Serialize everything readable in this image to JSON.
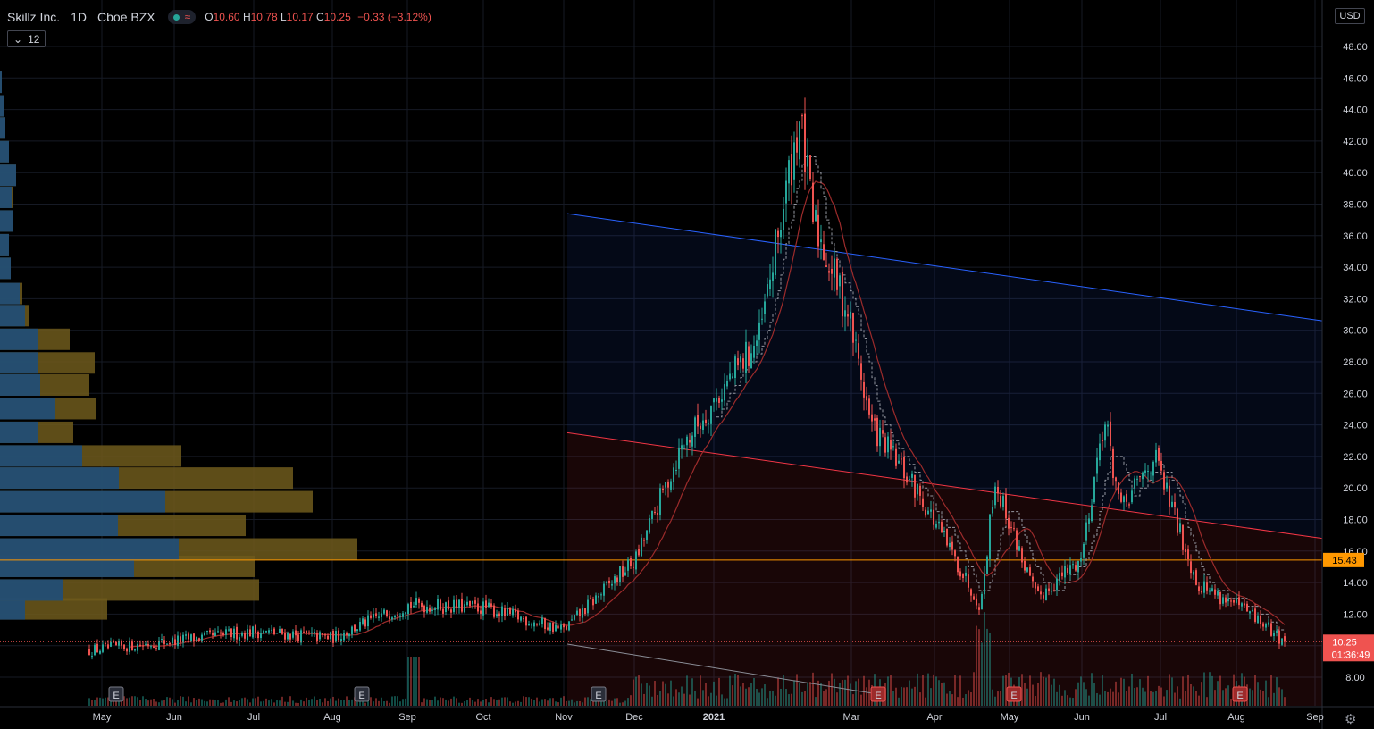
{
  "header": {
    "symbol_name": "Skillz Inc.",
    "interval": "1D",
    "exchange": "Cboe BZX",
    "open_label": "O",
    "open": "10.60",
    "high_label": "H",
    "high": "10.78",
    "low_label": "L",
    "low": "10.17",
    "close_label": "C",
    "close": "10.25",
    "change": "−0.33 (−3.12%)"
  },
  "indicator": {
    "chevron": "⌄",
    "value": "12"
  },
  "currency": "USD",
  "colors": {
    "up": "#26a69a",
    "down": "#ef5350",
    "trend_upper": "#2962ff",
    "trend_lower": "#f23645",
    "support_line": "#ff9800",
    "ma_line": "#9c2b2b",
    "vp_up": "#1f4e79",
    "vp_down": "#6f5a1c"
  },
  "chart_data": {
    "type": "candlestick",
    "symbol": "Skillz Inc.",
    "interval": "1D",
    "exchange": "Cboe BZX",
    "yaxis_ticks": [
      "8.00",
      "10.00",
      "12.00",
      "14.00",
      "16.00",
      "18.00",
      "20.00",
      "22.00",
      "24.00",
      "26.00",
      "28.00",
      "30.00",
      "32.00",
      "34.00",
      "36.00",
      "38.00",
      "40.00",
      "42.00",
      "44.00",
      "46.00",
      "48.00"
    ],
    "ylim": [
      6.8,
      50
    ],
    "xaxis_ticks": [
      "May",
      "Jun",
      "Jul",
      "Aug",
      "Sep",
      "Oct",
      "Nov",
      "Dec",
      "2021",
      "Mar",
      "Apr",
      "May",
      "Jun",
      "Jul",
      "Aug",
      "Sep"
    ],
    "price_labels": [
      {
        "value": 15.43,
        "text": "15.43",
        "color": "#ff9800"
      },
      {
        "value": 10.25,
        "text": "10.25",
        "color": "#ef5350"
      }
    ],
    "countdown": "01:36:49",
    "last_ohlc": {
      "open": 10.6,
      "high": 10.78,
      "low": 10.17,
      "close": 10.25,
      "change": -0.33,
      "change_pct": -3.12
    },
    "earnings_markers": [
      {
        "month": "May 2020",
        "label": "E"
      },
      {
        "month": "Aug 2020",
        "label": "E"
      },
      {
        "month": "Nov 2020",
        "label": "E"
      },
      {
        "month": "Mar 2021",
        "label": "E"
      },
      {
        "month": "May 2021",
        "label": "E"
      },
      {
        "month": "Aug 2021",
        "label": "E"
      }
    ],
    "price_path": [
      [
        "May 2020",
        9.7
      ],
      [
        "Jun 2020",
        10.3
      ],
      [
        "Jul 2020",
        10.9
      ],
      [
        "Aug 2020",
        10.5
      ],
      [
        "Sep 2020",
        12.6
      ],
      [
        "Oct 2020",
        12.4
      ],
      [
        "Nov 2020",
        11.0
      ],
      [
        "Dec 2020",
        15.5
      ],
      [
        "Dec 2020",
        22.5
      ],
      [
        "Jan 2021",
        29.5
      ],
      [
        "Feb 2021",
        43.5
      ],
      [
        "Feb 2021",
        37.0
      ],
      [
        "Mar 2021",
        31.0
      ],
      [
        "Mar 2021",
        24.0
      ],
      [
        "Apr 2021",
        19.5
      ],
      [
        "Apr 2021",
        12.5
      ],
      [
        "May 2021",
        20.5
      ],
      [
        "May 2021",
        13.0
      ],
      [
        "Jun 2021",
        15.5
      ],
      [
        "Jun 2021",
        24.5
      ],
      [
        "Jun 2021",
        18.5
      ],
      [
        "Jul 2021",
        22.0
      ],
      [
        "Jul 2021",
        14.0
      ],
      [
        "Aug 2021",
        12.0
      ],
      [
        "Aug 2021",
        10.25
      ]
    ],
    "trend_lines": [
      {
        "name": "upper",
        "from": [
          "Nov 2020",
          37.4
        ],
        "to": [
          "Sep 2021",
          30.6
        ]
      },
      {
        "name": "middle",
        "from": [
          "Nov 2020",
          23.5
        ],
        "to": [
          "Sep 2021",
          16.8
        ]
      },
      {
        "name": "lower",
        "from": [
          "Nov 2020",
          10.1
        ],
        "to": [
          "Apr 2021",
          6.9
        ]
      }
    ],
    "horizontal_line": 15.43,
    "volume_profile_rows": [
      {
        "price": 12.3,
        "up": 28,
        "total": 120
      },
      {
        "price": 13.5,
        "up": 70,
        "total": 290
      },
      {
        "price": 15.0,
        "up": 150,
        "total": 285
      },
      {
        "price": 16.1,
        "up": 200,
        "total": 400
      },
      {
        "price": 17.6,
        "up": 132,
        "total": 275
      },
      {
        "price": 19.1,
        "up": 185,
        "total": 350
      },
      {
        "price": 20.6,
        "up": 133,
        "total": 328
      },
      {
        "price": 22.0,
        "up": 92,
        "total": 203
      },
      {
        "price": 23.5,
        "up": 42,
        "total": 82
      },
      {
        "price": 25.0,
        "up": 62,
        "total": 108
      },
      {
        "price": 26.5,
        "up": 45,
        "total": 100
      },
      {
        "price": 27.9,
        "up": 43,
        "total": 106
      },
      {
        "price": 29.4,
        "up": 43,
        "total": 78
      },
      {
        "price": 30.9,
        "up": 28,
        "total": 33
      },
      {
        "price": 32.3,
        "up": 22,
        "total": 25
      },
      {
        "price": 33.9,
        "up": 12,
        "total": 12
      },
      {
        "price": 35.4,
        "up": 10,
        "total": 10
      },
      {
        "price": 36.9,
        "up": 14,
        "total": 14
      },
      {
        "price": 38.4,
        "up": 13,
        "total": 15
      },
      {
        "price": 39.8,
        "up": 18,
        "total": 18
      },
      {
        "price": 41.3,
        "up": 10,
        "total": 10
      },
      {
        "price": 42.8,
        "up": 6,
        "total": 6
      },
      {
        "price": 44.2,
        "up": 4,
        "total": 4
      },
      {
        "price": 45.7,
        "up": 2,
        "total": 2
      }
    ]
  }
}
